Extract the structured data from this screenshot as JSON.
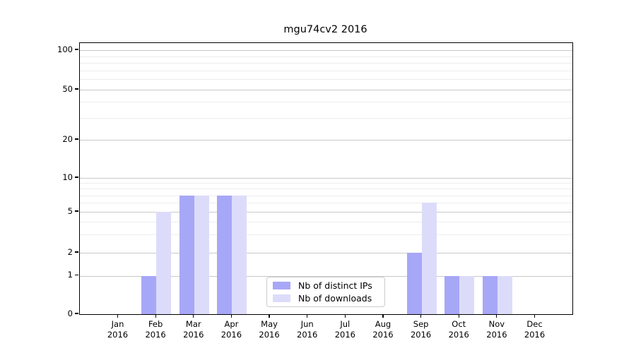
{
  "title": "mgu74cv2 2016",
  "legend": {
    "items": [
      {
        "label": "Nb of distinct IPs",
        "color": "#a7a7f7"
      },
      {
        "label": "Nb of downloads",
        "color": "#dcdcfa"
      }
    ]
  },
  "y_axis": {
    "tick_values": [
      0,
      1,
      2,
      5,
      10,
      20,
      50,
      100
    ],
    "tick_labels": [
      "0",
      "1",
      "2",
      "5",
      "10",
      "20",
      "50",
      "100"
    ],
    "minor_values": [
      3,
      4,
      6,
      7,
      8,
      9,
      30,
      40,
      60,
      70,
      80,
      90
    ]
  },
  "x_axis": {
    "categories": [
      {
        "month": "Jan",
        "year": "2016"
      },
      {
        "month": "Feb",
        "year": "2016"
      },
      {
        "month": "Mar",
        "year": "2016"
      },
      {
        "month": "Apr",
        "year": "2016"
      },
      {
        "month": "May",
        "year": "2016"
      },
      {
        "month": "Jun",
        "year": "2016"
      },
      {
        "month": "Jul",
        "year": "2016"
      },
      {
        "month": "Aug",
        "year": "2016"
      },
      {
        "month": "Sep",
        "year": "2016"
      },
      {
        "month": "Oct",
        "year": "2016"
      },
      {
        "month": "Nov",
        "year": "2016"
      },
      {
        "month": "Dec",
        "year": "2016"
      }
    ]
  },
  "chart_data": {
    "type": "bar",
    "title": "mgu74cv2 2016",
    "categories": [
      "Jan 2016",
      "Feb 2016",
      "Mar 2016",
      "Apr 2016",
      "May 2016",
      "Jun 2016",
      "Jul 2016",
      "Aug 2016",
      "Sep 2016",
      "Oct 2016",
      "Nov 2016",
      "Dec 2016"
    ],
    "series": [
      {
        "name": "Nb of distinct IPs",
        "color": "#a7a7f7",
        "values": [
          0,
          1,
          7,
          7,
          0,
          0,
          0,
          0,
          2,
          1,
          1,
          0
        ]
      },
      {
        "name": "Nb of downloads",
        "color": "#dcdcfa",
        "values": [
          0,
          5,
          7,
          7,
          0,
          0,
          0,
          0,
          6,
          1,
          1,
          0
        ]
      }
    ],
    "xlabel": "",
    "ylabel": "",
    "yscale": "symlog",
    "yticks": [
      0,
      1,
      2,
      5,
      10,
      20,
      50,
      100
    ],
    "ylim": [
      0,
      113
    ],
    "grid": "horizontal",
    "legend_position": "lower center"
  }
}
